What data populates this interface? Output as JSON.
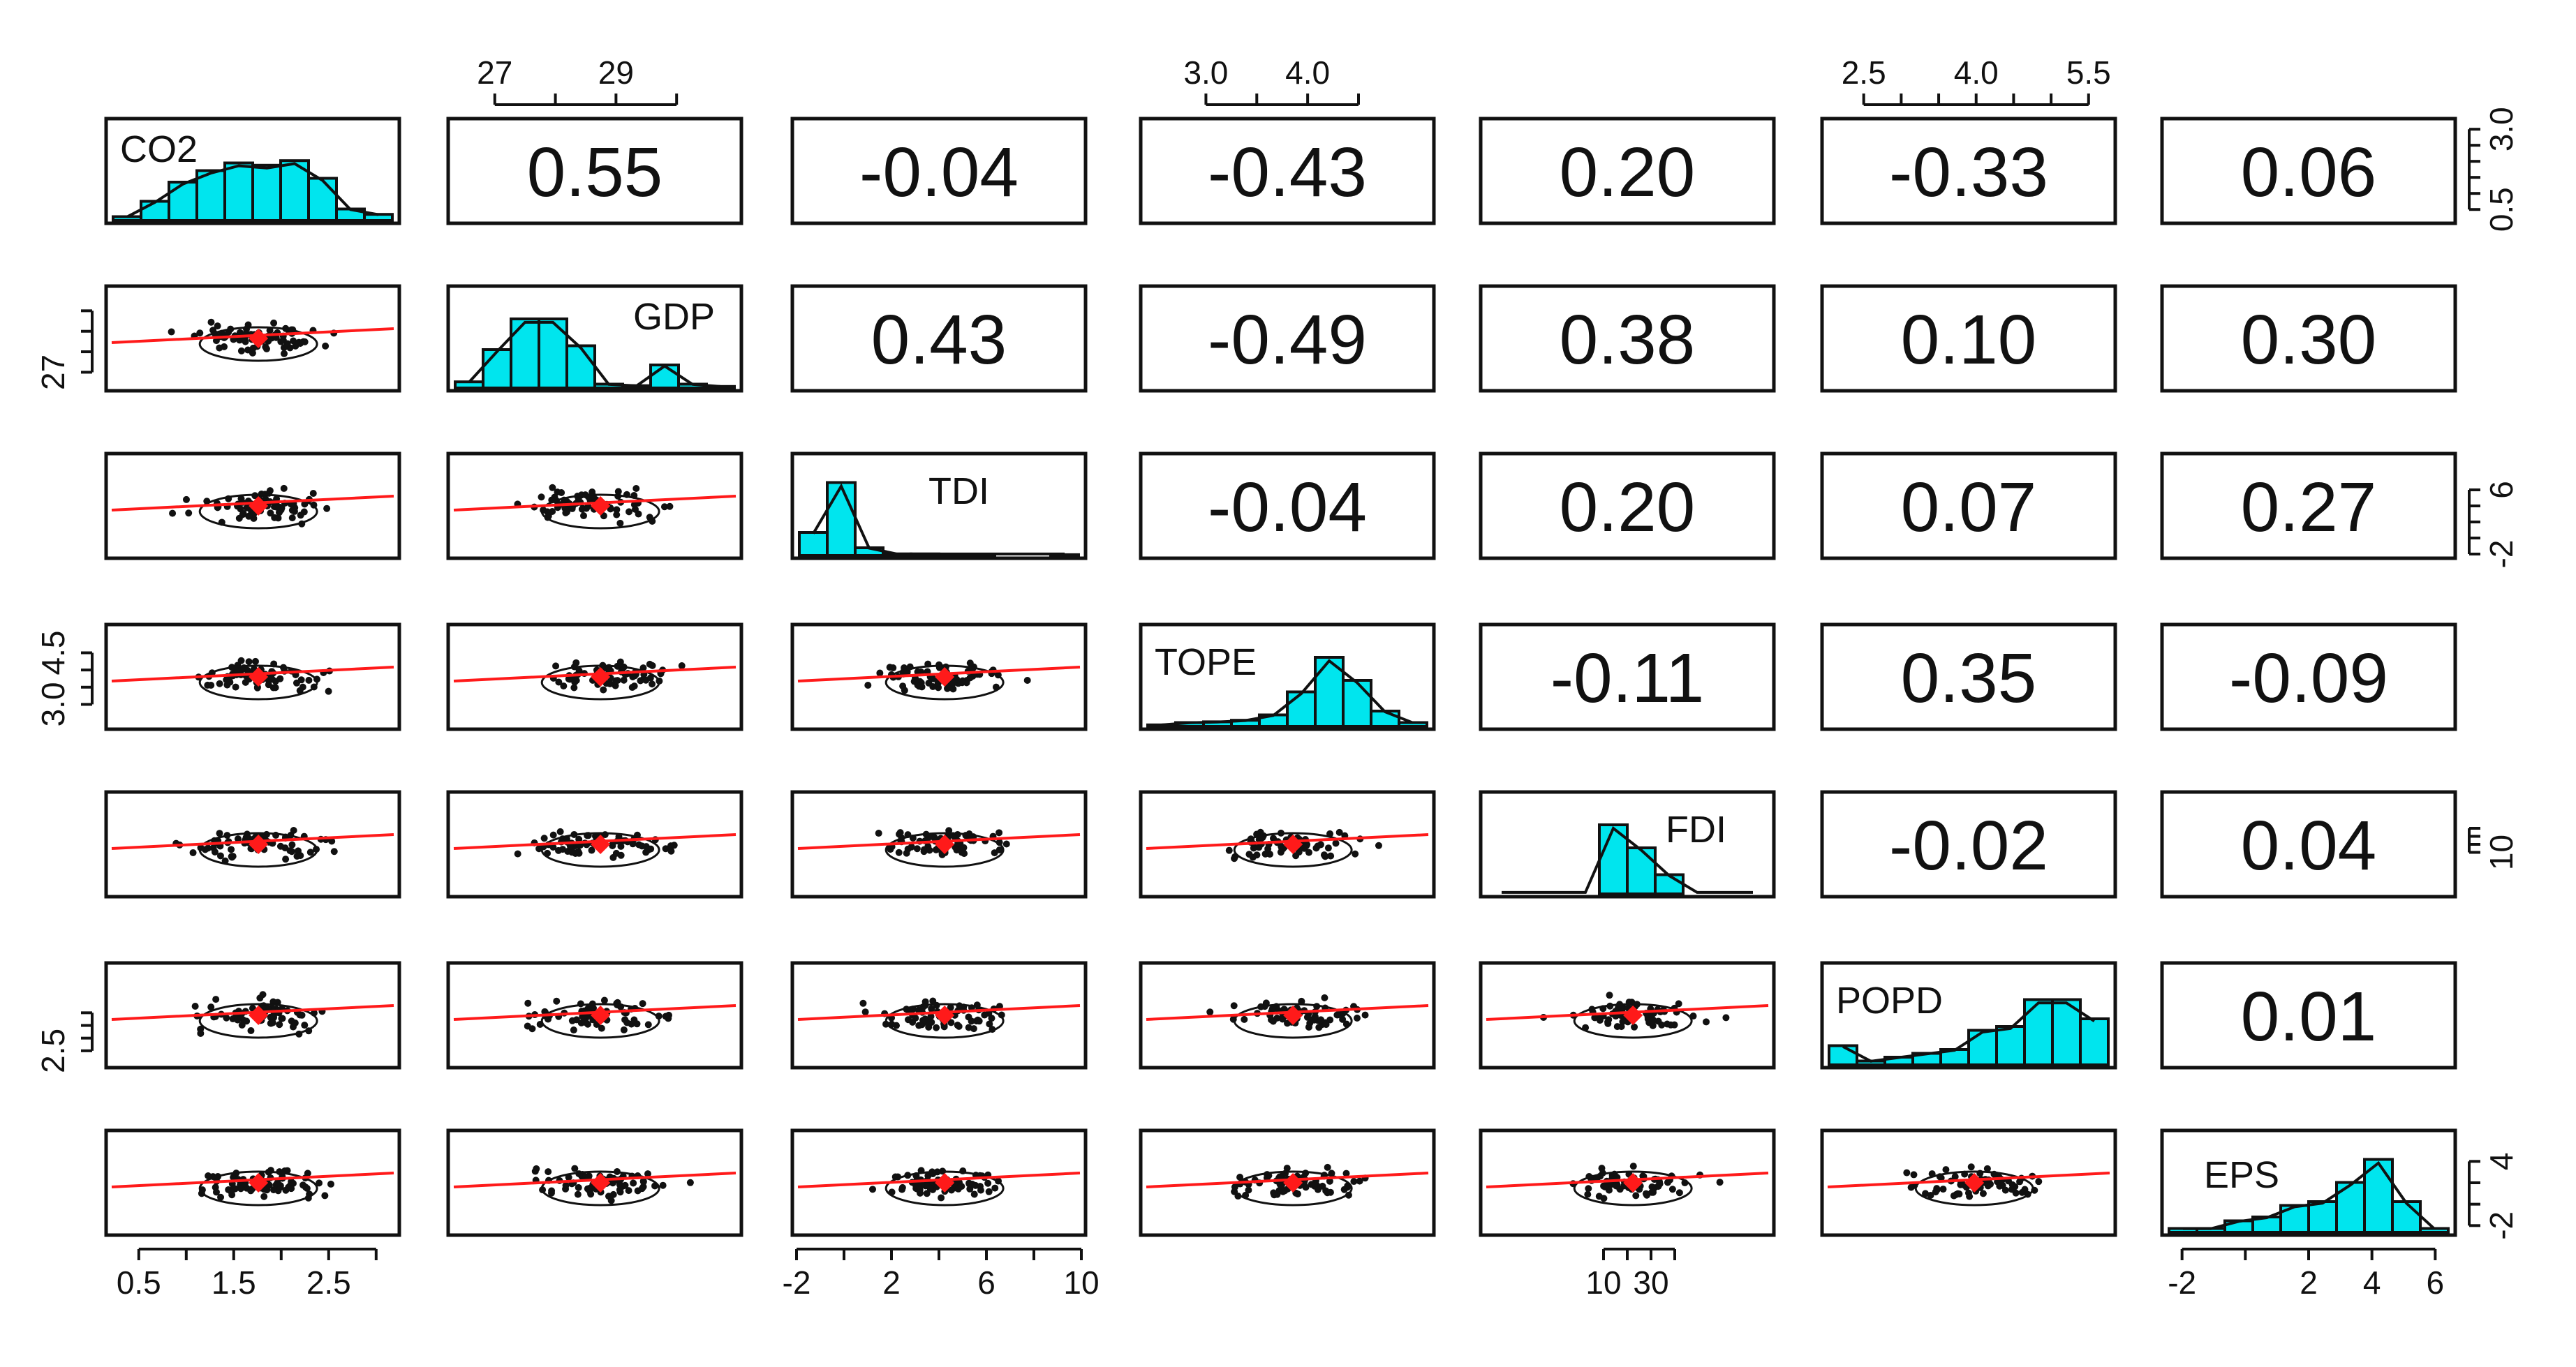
{
  "chart_data": {
    "type": "scatter",
    "title": "",
    "variables": [
      {
        "name": "CO2",
        "label": "CO2",
        "range": [
          0.2,
          3.2
        ],
        "hist": [
          0.05,
          0.25,
          0.5,
          0.65,
          0.75,
          0.72,
          0.78,
          0.55,
          0.15,
          0.08
        ]
      },
      {
        "name": "GDP",
        "label": "GDP",
        "range": [
          26.3,
          31.0
        ],
        "hist": [
          0.08,
          0.5,
          0.9,
          0.9,
          0.55,
          0.05,
          0.03,
          0.3,
          0.05,
          0.02
        ]
      },
      {
        "name": "TDI",
        "label": "TDI",
        "range": [
          -2,
          10
        ],
        "hist": [
          0.3,
          0.95,
          0.1,
          0.02,
          0.02,
          0.01,
          0.01,
          0.0,
          0.0,
          0.01
        ]
      },
      {
        "name": "TOPE",
        "label": "TOPE",
        "range": [
          2.4,
          5.2
        ],
        "hist": [
          0.02,
          0.05,
          0.06,
          0.08,
          0.15,
          0.45,
          0.9,
          0.6,
          0.2,
          0.05
        ]
      },
      {
        "name": "FDI",
        "label": "FDI",
        "range": [
          -40,
          80
        ],
        "hist": [
          0.0,
          0.0,
          0.0,
          0.0,
          0.9,
          0.6,
          0.25,
          0.0,
          0.0,
          0.0
        ]
      },
      {
        "name": "POPD",
        "label": "POPD",
        "range": [
          2.0,
          5.8
        ],
        "hist": [
          0.25,
          0.05,
          0.1,
          0.15,
          0.2,
          0.45,
          0.5,
          0.85,
          0.85,
          0.6
        ]
      },
      {
        "name": "EPS",
        "label": "EPS",
        "range": [
          -2.5,
          6.5
        ],
        "hist": [
          0.05,
          0.05,
          0.15,
          0.2,
          0.35,
          0.4,
          0.65,
          0.95,
          0.4,
          0.05
        ]
      }
    ],
    "correlations": {
      "CO2": {
        "GDP": "0.55",
        "TDI": "-0.04",
        "TOPE": "-0.43",
        "FDI": "0.20",
        "POPD": "-0.33",
        "EPS": "0.06"
      },
      "GDP": {
        "TDI": "0.43",
        "TOPE": "-0.49",
        "FDI": "0.38",
        "POPD": "0.10",
        "EPS": "0.30"
      },
      "TDI": {
        "TOPE": "-0.04",
        "FDI": "0.20",
        "POPD": "0.07",
        "EPS": "0.27"
      },
      "TOPE": {
        "FDI": "-0.11",
        "POPD": "0.35",
        "EPS": "-0.09"
      },
      "FDI": {
        "POPD": "-0.02",
        "EPS": "0.04"
      },
      "POPD": {
        "EPS": "0.01"
      }
    },
    "axes": {
      "top": [
        {
          "column": 1,
          "ticks": [
            27,
            28,
            29,
            30
          ],
          "labels": [
            "27",
            "",
            "29",
            ""
          ]
        },
        {
          "column": 3,
          "ticks": [
            3.0,
            3.5,
            4.0,
            4.5
          ],
          "labels": [
            "3.0",
            "",
            "4.0",
            ""
          ]
        },
        {
          "column": 5,
          "ticks": [
            2.5,
            3.0,
            3.5,
            4.0,
            4.5,
            5.0,
            5.5
          ],
          "labels": [
            "2.5",
            "",
            "",
            "4.0",
            "",
            "",
            "5.5"
          ]
        }
      ],
      "bottom": [
        {
          "column": 0,
          "ticks": [
            0.5,
            1.0,
            1.5,
            2.0,
            2.5,
            3.0
          ],
          "labels": [
            "0.5",
            "",
            "1.5",
            "",
            "2.5",
            ""
          ]
        },
        {
          "column": 2,
          "ticks": [
            -2,
            0,
            2,
            4,
            6,
            8,
            10
          ],
          "labels": [
            "-2",
            "",
            "2",
            "",
            "6",
            "",
            "10"
          ]
        },
        {
          "column": 4,
          "ticks": [
            10,
            20,
            30,
            40
          ],
          "labels": [
            "10",
            "",
            "30",
            ""
          ]
        },
        {
          "column": 6,
          "ticks": [
            -2,
            0,
            2,
            4,
            6
          ],
          "labels": [
            "-2",
            "",
            "2",
            "4",
            "6"
          ]
        }
      ],
      "left": [
        {
          "row": 1,
          "ticks": [
            27,
            28,
            29,
            30
          ],
          "labels": [
            "27",
            "",
            "",
            ""
          ]
        },
        {
          "row": 3,
          "ticks": [
            3.0,
            3.5,
            4.0,
            4.5
          ],
          "labels": [
            "3.0",
            "",
            "",
            "4.5"
          ]
        },
        {
          "row": 5,
          "ticks": [
            2.5,
            3.0,
            3.5,
            4.0
          ],
          "labels": [
            "2.5",
            "",
            "",
            ""
          ]
        }
      ],
      "right": [
        {
          "row": 0,
          "ticks": [
            0.5,
            1.0,
            1.5,
            2.0,
            2.5,
            3.0
          ],
          "labels": [
            "0.5",
            "",
            "",
            "",
            "",
            "3.0"
          ]
        },
        {
          "row": 2,
          "ticks": [
            -2,
            0,
            2,
            4,
            6
          ],
          "labels": [
            "-2",
            "",
            "",
            "",
            "6"
          ]
        },
        {
          "row": 4,
          "ticks": [
            10,
            20,
            30,
            40
          ],
          "labels": [
            "10",
            "",
            "",
            ""
          ]
        },
        {
          "row": 6,
          "ticks": [
            -2,
            0,
            2,
            4
          ],
          "labels": [
            "-2",
            "",
            "",
            "4"
          ]
        }
      ]
    },
    "scatter_style": {
      "point_color": "#111111",
      "smoother_color": "#ff1a1a",
      "histogram_color": "#00e5ee"
    }
  }
}
